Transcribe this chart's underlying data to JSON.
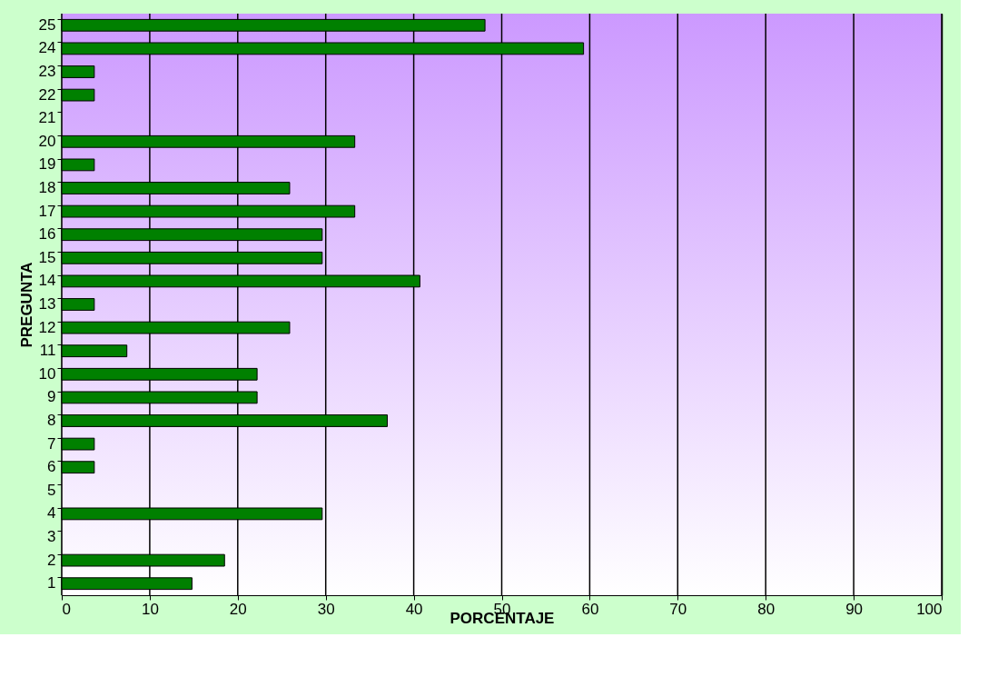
{
  "chart_data": {
    "type": "bar",
    "orientation": "horizontal",
    "xlabel": "PORCENTAJE",
    "ylabel": "PREGUNTA",
    "categories": [
      "25",
      "24",
      "23",
      "22",
      "21",
      "20",
      "19",
      "18",
      "17",
      "16",
      "15",
      "14",
      "13",
      "12",
      "11",
      "10",
      "9",
      "8",
      "7",
      "6",
      "5",
      "4",
      "3",
      "2",
      "1"
    ],
    "values": [
      48.1,
      59.3,
      3.7,
      3.7,
      0,
      33.3,
      3.7,
      25.9,
      33.3,
      29.6,
      29.6,
      40.7,
      3.7,
      25.9,
      7.4,
      22.2,
      22.2,
      37.0,
      3.7,
      3.7,
      0,
      29.6,
      0,
      18.5,
      14.8
    ],
    "color": "#008000",
    "xlim": [
      0,
      100
    ],
    "xticks": [
      0,
      10,
      20,
      30,
      40,
      50,
      60,
      70,
      80,
      90,
      100
    ],
    "grid": "x"
  }
}
